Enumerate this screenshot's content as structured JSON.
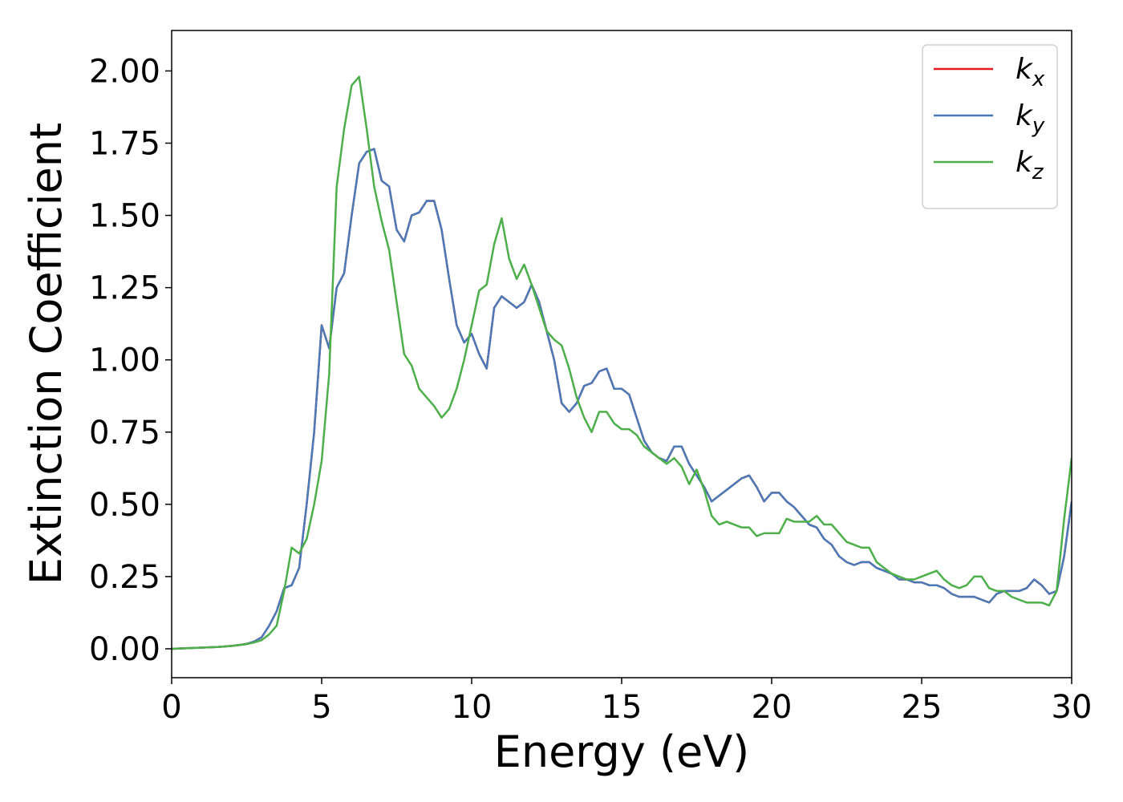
{
  "chart_data": {
    "type": "line",
    "xlabel": "Energy (eV)",
    "ylabel": "Extinction Coefficient",
    "xlim": [
      0,
      30
    ],
    "ylim": [
      -0.1,
      2.14
    ],
    "xticks": [
      0,
      5,
      10,
      15,
      20,
      25,
      30
    ],
    "yticks": [
      {
        "value": 0,
        "label": "0.00"
      },
      {
        "value": 0.25,
        "label": "0.25"
      },
      {
        "value": 0.5,
        "label": "0.50"
      },
      {
        "value": 0.75,
        "label": "0.75"
      },
      {
        "value": 1,
        "label": "1.00"
      },
      {
        "value": 1.25,
        "label": "1.25"
      },
      {
        "value": 1.5,
        "label": "1.50"
      },
      {
        "value": 1.75,
        "label": "1.75"
      },
      {
        "value": 2,
        "label": "2.00"
      }
    ],
    "grid": false,
    "legend": "upper right",
    "x": [
      0,
      0.25,
      0.5,
      0.75,
      1,
      1.25,
      1.5,
      1.75,
      2,
      2.25,
      2.5,
      2.75,
      3,
      3.25,
      3.5,
      3.75,
      4,
      4.25,
      4.5,
      4.75,
      5,
      5.25,
      5.5,
      5.75,
      6,
      6.25,
      6.5,
      6.75,
      7,
      7.25,
      7.5,
      7.75,
      8,
      8.25,
      8.5,
      8.75,
      9,
      9.25,
      9.5,
      9.75,
      10,
      10.25,
      10.5,
      10.75,
      11,
      11.25,
      11.5,
      11.75,
      12,
      12.25,
      12.5,
      12.75,
      13,
      13.25,
      13.5,
      13.75,
      14,
      14.25,
      14.5,
      14.75,
      15,
      15.25,
      15.5,
      15.75,
      16,
      16.25,
      16.5,
      16.75,
      17,
      17.25,
      17.5,
      17.75,
      18,
      18.25,
      18.5,
      18.75,
      19,
      19.25,
      19.5,
      19.75,
      20,
      20.25,
      20.5,
      20.75,
      21,
      21.25,
      21.5,
      21.75,
      22,
      22.25,
      22.5,
      22.75,
      23,
      23.25,
      23.5,
      23.75,
      24,
      24.25,
      24.5,
      24.75,
      25,
      25.25,
      25.5,
      25.75,
      26,
      26.25,
      26.5,
      26.75,
      27,
      27.25,
      27.5,
      27.75,
      28,
      28.25,
      28.5,
      28.75,
      29,
      29.25,
      29.5,
      29.75,
      30
    ],
    "series": [
      {
        "name": "kx",
        "color": "#e41a1c",
        "values": [
          0,
          0.001,
          0.002,
          0.003,
          0.004,
          0.005,
          0.006,
          0.008,
          0.01,
          0.013,
          0.017,
          0.025,
          0.04,
          0.08,
          0.13,
          0.21,
          0.22,
          0.28,
          0.5,
          0.75,
          1.12,
          1.04,
          1.25,
          1.3,
          1.5,
          1.68,
          1.72,
          1.73,
          1.62,
          1.6,
          1.45,
          1.41,
          1.5,
          1.51,
          1.55,
          1.55,
          1.45,
          1.28,
          1.12,
          1.06,
          1.09,
          1.02,
          0.97,
          1.18,
          1.22,
          1.2,
          1.18,
          1.2,
          1.26,
          1.2,
          1.1,
          1,
          0.85,
          0.82,
          0.85,
          0.91,
          0.92,
          0.96,
          0.97,
          0.9,
          0.9,
          0.88,
          0.8,
          0.72,
          0.68,
          0.66,
          0.65,
          0.7,
          0.7,
          0.64,
          0.6,
          0.56,
          0.51,
          0.53,
          0.55,
          0.57,
          0.59,
          0.6,
          0.56,
          0.51,
          0.54,
          0.54,
          0.51,
          0.49,
          0.46,
          0.43,
          0.42,
          0.38,
          0.36,
          0.32,
          0.3,
          0.29,
          0.3,
          0.3,
          0.28,
          0.27,
          0.26,
          0.24,
          0.24,
          0.23,
          0.23,
          0.22,
          0.22,
          0.21,
          0.19,
          0.18,
          0.18,
          0.18,
          0.17,
          0.16,
          0.19,
          0.2,
          0.2,
          0.2,
          0.21,
          0.24,
          0.22,
          0.19,
          0.2,
          0.32,
          0.51
        ]
      },
      {
        "name": "ky",
        "color": "#4a7ab7",
        "values": [
          0,
          0.001,
          0.002,
          0.003,
          0.004,
          0.005,
          0.006,
          0.008,
          0.01,
          0.013,
          0.017,
          0.025,
          0.04,
          0.08,
          0.13,
          0.21,
          0.22,
          0.28,
          0.5,
          0.75,
          1.12,
          1.04,
          1.25,
          1.3,
          1.5,
          1.68,
          1.72,
          1.73,
          1.62,
          1.6,
          1.45,
          1.41,
          1.5,
          1.51,
          1.55,
          1.55,
          1.45,
          1.28,
          1.12,
          1.06,
          1.09,
          1.02,
          0.97,
          1.18,
          1.22,
          1.2,
          1.18,
          1.2,
          1.26,
          1.2,
          1.1,
          1,
          0.85,
          0.82,
          0.85,
          0.91,
          0.92,
          0.96,
          0.97,
          0.9,
          0.9,
          0.88,
          0.8,
          0.72,
          0.68,
          0.66,
          0.65,
          0.7,
          0.7,
          0.64,
          0.6,
          0.56,
          0.51,
          0.53,
          0.55,
          0.57,
          0.59,
          0.6,
          0.56,
          0.51,
          0.54,
          0.54,
          0.51,
          0.49,
          0.46,
          0.43,
          0.42,
          0.38,
          0.36,
          0.32,
          0.3,
          0.29,
          0.3,
          0.3,
          0.28,
          0.27,
          0.26,
          0.24,
          0.24,
          0.23,
          0.23,
          0.22,
          0.22,
          0.21,
          0.19,
          0.18,
          0.18,
          0.18,
          0.17,
          0.16,
          0.19,
          0.2,
          0.2,
          0.2,
          0.21,
          0.24,
          0.22,
          0.19,
          0.2,
          0.32,
          0.51
        ]
      },
      {
        "name": "kz",
        "color": "#4daf4a",
        "values": [
          0,
          0.001,
          0.002,
          0.003,
          0.004,
          0.005,
          0.006,
          0.008,
          0.01,
          0.013,
          0.016,
          0.022,
          0.03,
          0.05,
          0.08,
          0.2,
          0.35,
          0.33,
          0.38,
          0.5,
          0.65,
          0.95,
          1.6,
          1.8,
          1.95,
          1.98,
          1.8,
          1.6,
          1.48,
          1.38,
          1.2,
          1.02,
          0.98,
          0.9,
          0.87,
          0.84,
          0.8,
          0.83,
          0.9,
          1,
          1.12,
          1.24,
          1.26,
          1.4,
          1.49,
          1.35,
          1.28,
          1.33,
          1.26,
          1.18,
          1.1,
          1.07,
          1.05,
          0.97,
          0.87,
          0.8,
          0.75,
          0.82,
          0.82,
          0.78,
          0.76,
          0.76,
          0.74,
          0.7,
          0.68,
          0.66,
          0.64,
          0.66,
          0.63,
          0.57,
          0.62,
          0.55,
          0.46,
          0.43,
          0.44,
          0.43,
          0.42,
          0.42,
          0.39,
          0.4,
          0.4,
          0.4,
          0.45,
          0.44,
          0.44,
          0.44,
          0.46,
          0.43,
          0.43,
          0.4,
          0.37,
          0.36,
          0.35,
          0.35,
          0.3,
          0.28,
          0.26,
          0.25,
          0.24,
          0.24,
          0.25,
          0.26,
          0.27,
          0.24,
          0.22,
          0.21,
          0.22,
          0.25,
          0.25,
          0.21,
          0.2,
          0.2,
          0.18,
          0.17,
          0.16,
          0.16,
          0.16,
          0.15,
          0.2,
          0.45,
          0.66
        ]
      }
    ]
  }
}
